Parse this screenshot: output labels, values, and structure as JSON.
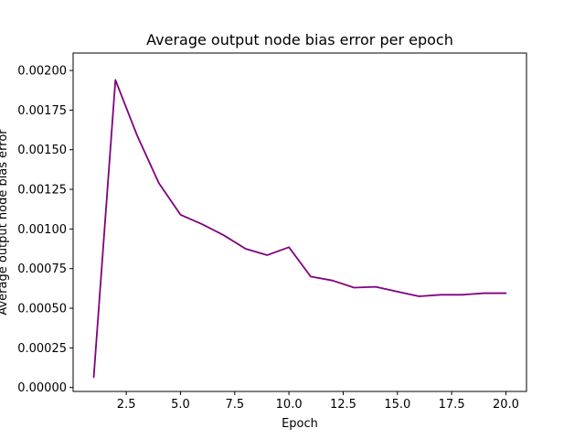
{
  "chart_data": {
    "type": "line",
    "title": "Average output node bias error per epoch",
    "xlabel": "Epoch",
    "ylabel": "Average output node bias error",
    "xlim": [
      0.05,
      20.95
    ],
    "ylim": [
      -2.5e-05,
      0.00211
    ],
    "x_ticks": [
      2.5,
      5.0,
      7.5,
      10.0,
      12.5,
      15.0,
      17.5,
      20.0
    ],
    "x_tick_labels": [
      "2.5",
      "5.0",
      "7.5",
      "10.0",
      "12.5",
      "15.0",
      "17.5",
      "20.0"
    ],
    "y_ticks": [
      0.0,
      0.00025,
      0.0005,
      0.00075,
      0.001,
      0.00125,
      0.0015,
      0.00175,
      0.002
    ],
    "y_tick_labels": [
      "0.00000",
      "0.00025",
      "0.00050",
      "0.00075",
      "0.00100",
      "0.00125",
      "0.00150",
      "0.00175",
      "0.00200"
    ],
    "grid": false,
    "series": [
      {
        "color": "#800080",
        "x": [
          1,
          2,
          3,
          4,
          5,
          6,
          7,
          8,
          9,
          10,
          11,
          12,
          13,
          14,
          15,
          16,
          17,
          18,
          19,
          20
        ],
        "values": [
          6.5e-05,
          0.00194,
          0.00159,
          0.00129,
          0.00109,
          0.00103,
          0.00096,
          0.000875,
          0.000835,
          0.000885,
          0.0007,
          0.000675,
          0.00063,
          0.000635,
          0.000605,
          0.000575,
          0.000585,
          0.000585,
          0.000595,
          0.000595
        ]
      }
    ]
  }
}
